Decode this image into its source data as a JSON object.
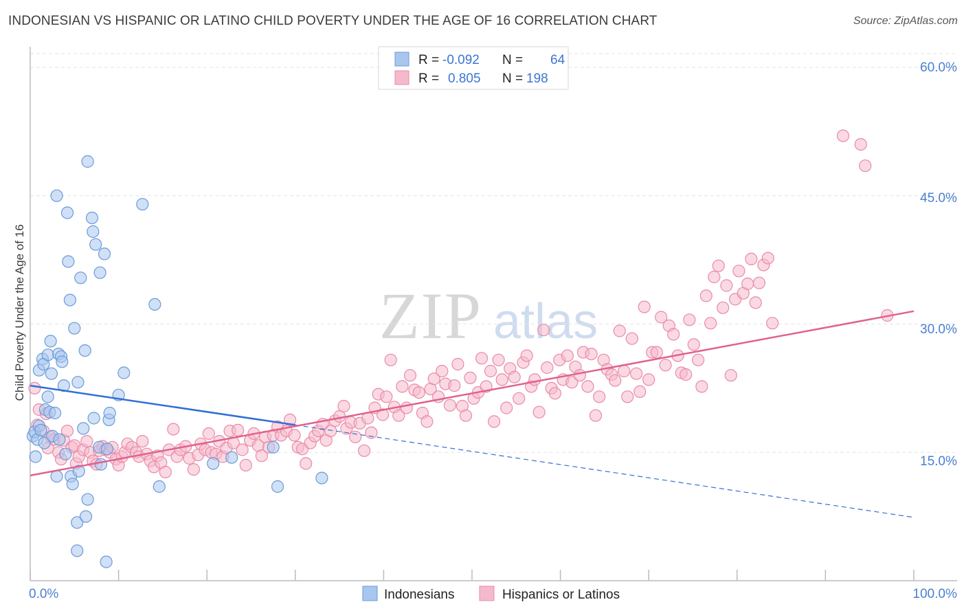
{
  "title": "INDONESIAN VS HISPANIC OR LATINO CHILD POVERTY UNDER THE AGE OF 16 CORRELATION CHART",
  "source": "Source: ZipAtlas.com",
  "watermark": {
    "zip": "ZIP",
    "atlas": "atlas"
  },
  "colors": {
    "blue_fill": "#a9c6ee",
    "blue_stroke": "#6a9ad9",
    "blue_line": "#2f6fd6",
    "pink_fill": "#f5b9cc",
    "pink_stroke": "#e88aa8",
    "pink_line": "#e0628c",
    "tick_text": "#4a7fd0",
    "grid": "#e3e3e3"
  },
  "legend": {
    "r_label": "R =",
    "n_label": "N =",
    "rows": [
      {
        "series": "Indonesians",
        "r": "-0.092",
        "n": "64"
      },
      {
        "series": "Hispanics or Latinos",
        "r": "0.805",
        "n": "198"
      }
    ]
  },
  "chart_data": {
    "type": "scatter",
    "title": "INDONESIAN VS HISPANIC OR LATINO CHILD POVERTY UNDER THE AGE OF 16 CORRELATION CHART",
    "xlabel": "",
    "ylabel": "Child Poverty Under the Age of 16",
    "xlim": [
      0,
      100
    ],
    "ylim": [
      0,
      60
    ],
    "x_tick_labels": [
      "0.0%",
      "100.0%"
    ],
    "y_ticks": [
      15,
      30,
      45,
      60
    ],
    "y_tick_labels": [
      "15.0%",
      "30.0%",
      "45.0%",
      "60.0%"
    ],
    "grid": true,
    "series": [
      {
        "name": "Indonesians",
        "trend": {
          "x0": 0,
          "y0": 22.8,
          "x1": 30,
          "y1": 18.2,
          "dashed_to_x": 100,
          "dashed_to_y": 7.4
        },
        "points": [
          [
            0.3,
            16.9
          ],
          [
            0.5,
            17.4
          ],
          [
            0.6,
            14.5
          ],
          [
            0.8,
            16.5
          ],
          [
            1,
            18.1
          ],
          [
            1,
            24.6
          ],
          [
            1.2,
            17.6
          ],
          [
            1.4,
            25.9
          ],
          [
            1.5,
            25.3
          ],
          [
            1.6,
            16.1
          ],
          [
            1.7,
            20
          ],
          [
            2,
            21.5
          ],
          [
            2,
            26.4
          ],
          [
            2.2,
            19.7
          ],
          [
            2.3,
            28
          ],
          [
            2.4,
            24.2
          ],
          [
            2.5,
            16.9
          ],
          [
            2.8,
            19.6
          ],
          [
            3,
            12.2
          ],
          [
            3,
            45
          ],
          [
            3.2,
            26.5
          ],
          [
            3.3,
            16.5
          ],
          [
            3.5,
            26.2
          ],
          [
            3.6,
            25.6
          ],
          [
            3.8,
            22.8
          ],
          [
            4,
            14.8
          ],
          [
            4.2,
            43
          ],
          [
            4.3,
            37.3
          ],
          [
            4.5,
            32.8
          ],
          [
            4.6,
            12.2
          ],
          [
            4.8,
            11.3
          ],
          [
            5,
            29.5
          ],
          [
            5.3,
            6.8
          ],
          [
            5.3,
            3.5
          ],
          [
            5.4,
            23.2
          ],
          [
            5.5,
            12.8
          ],
          [
            5.7,
            35.4
          ],
          [
            6,
            17.8
          ],
          [
            6.2,
            26.9
          ],
          [
            6.3,
            7.5
          ],
          [
            6.5,
            9.5
          ],
          [
            6.5,
            49
          ],
          [
            7,
            42.4
          ],
          [
            7.1,
            40.8
          ],
          [
            7.2,
            19
          ],
          [
            7.4,
            39.3
          ],
          [
            7.8,
            15.6
          ],
          [
            7.9,
            36
          ],
          [
            8,
            13.6
          ],
          [
            8.4,
            38.2
          ],
          [
            8.6,
            2.2
          ],
          [
            8.7,
            15.4
          ],
          [
            8.9,
            18.8
          ],
          [
            9,
            19.6
          ],
          [
            10,
            21.7
          ],
          [
            10.6,
            24.3
          ],
          [
            12.7,
            44
          ],
          [
            14.1,
            32.3
          ],
          [
            14.6,
            11
          ],
          [
            20.7,
            13.7
          ],
          [
            22.8,
            14.4
          ],
          [
            27.5,
            15.6
          ],
          [
            28,
            11
          ],
          [
            33,
            12
          ]
        ]
      },
      {
        "name": "Hispanics or Latinos",
        "trend": {
          "x0": 0,
          "y0": 12.3,
          "x1": 100,
          "y1": 31.5
        },
        "points": [
          [
            0.5,
            22.5
          ],
          [
            0.8,
            18.2
          ],
          [
            1,
            20
          ],
          [
            1.5,
            17.5
          ],
          [
            1.8,
            19.5
          ],
          [
            2,
            15.5
          ],
          [
            2.3,
            16.8
          ],
          [
            2.7,
            16.5
          ],
          [
            3.2,
            15
          ],
          [
            3.5,
            14.2
          ],
          [
            3.8,
            16.4
          ],
          [
            4.2,
            17.5
          ],
          [
            4.7,
            15.6
          ],
          [
            5,
            15.8
          ],
          [
            5.2,
            13.7
          ],
          [
            5.5,
            14.5
          ],
          [
            6,
            15.3
          ],
          [
            6.4,
            16.3
          ],
          [
            6.8,
            15
          ],
          [
            7.1,
            14
          ],
          [
            7.5,
            13.6
          ],
          [
            7.8,
            15.2
          ],
          [
            8.2,
            15.7
          ],
          [
            8.5,
            15.3
          ],
          [
            9,
            15
          ],
          [
            9.3,
            15.6
          ],
          [
            9.7,
            14.2
          ],
          [
            10,
            13.5
          ],
          [
            10.4,
            14.5
          ],
          [
            10.7,
            15
          ],
          [
            11,
            16
          ],
          [
            11.5,
            15.6
          ],
          [
            12,
            15
          ],
          [
            12.3,
            14.5
          ],
          [
            12.7,
            16.3
          ],
          [
            13.2,
            14.8
          ],
          [
            13.6,
            14
          ],
          [
            14,
            13.3
          ],
          [
            14.4,
            14.6
          ],
          [
            14.8,
            13.8
          ],
          [
            15.3,
            12.7
          ],
          [
            15.7,
            15.3
          ],
          [
            16.2,
            17.7
          ],
          [
            16.6,
            14.5
          ],
          [
            17,
            15.3
          ],
          [
            17.6,
            15.7
          ],
          [
            18,
            14.3
          ],
          [
            18.5,
            13
          ],
          [
            19,
            14.7
          ],
          [
            19.3,
            16
          ],
          [
            19.8,
            15.3
          ],
          [
            20.2,
            17.2
          ],
          [
            20.5,
            15
          ],
          [
            21,
            14.8
          ],
          [
            21.4,
            16.3
          ],
          [
            21.8,
            14.5
          ],
          [
            22.2,
            15.5
          ],
          [
            22.6,
            17.5
          ],
          [
            23,
            16.1
          ],
          [
            23.5,
            17.6
          ],
          [
            24,
            15.3
          ],
          [
            24.4,
            13.5
          ],
          [
            24.9,
            16.4
          ],
          [
            25.3,
            17.2
          ],
          [
            25.8,
            15.8
          ],
          [
            26.2,
            14.6
          ],
          [
            26.6,
            16.8
          ],
          [
            27,
            15.6
          ],
          [
            27.5,
            17
          ],
          [
            28,
            18
          ],
          [
            28.4,
            17
          ],
          [
            29,
            17.5
          ],
          [
            29.4,
            18.8
          ],
          [
            29.9,
            17
          ],
          [
            30.3,
            15.6
          ],
          [
            30.8,
            15.4
          ],
          [
            31.2,
            13.7
          ],
          [
            31.7,
            16.1
          ],
          [
            32.2,
            16.9
          ],
          [
            32.6,
            17.5
          ],
          [
            33.1,
            18.3
          ],
          [
            33.5,
            16.4
          ],
          [
            34,
            17.5
          ],
          [
            34.5,
            18.7
          ],
          [
            35,
            19.2
          ],
          [
            35.5,
            20.4
          ],
          [
            35.8,
            17.8
          ],
          [
            36.3,
            18.5
          ],
          [
            36.8,
            16.8
          ],
          [
            37.3,
            18.4
          ],
          [
            37.8,
            15.2
          ],
          [
            38.2,
            19
          ],
          [
            38.6,
            17.3
          ],
          [
            39,
            20.2
          ],
          [
            39.4,
            21.8
          ],
          [
            39.9,
            19.4
          ],
          [
            40.3,
            21.5
          ],
          [
            40.8,
            25.8
          ],
          [
            41.2,
            20.3
          ],
          [
            41.7,
            19.3
          ],
          [
            42.1,
            22.7
          ],
          [
            42.6,
            20.2
          ],
          [
            43,
            24
          ],
          [
            43.5,
            22.3
          ],
          [
            44,
            22
          ],
          [
            44.4,
            19.6
          ],
          [
            44.9,
            18.6
          ],
          [
            45.3,
            22.4
          ],
          [
            45.7,
            23.6
          ],
          [
            46.2,
            21.5
          ],
          [
            46.6,
            24.5
          ],
          [
            47,
            23
          ],
          [
            47.5,
            20.5
          ],
          [
            48,
            22.8
          ],
          [
            48.4,
            25.3
          ],
          [
            48.9,
            20.4
          ],
          [
            49.3,
            19.3
          ],
          [
            49.8,
            23.7
          ],
          [
            50.2,
            21.3
          ],
          [
            50.7,
            22
          ],
          [
            51.1,
            26
          ],
          [
            51.6,
            22.7
          ],
          [
            52.1,
            24.5
          ],
          [
            52.5,
            18.6
          ],
          [
            53,
            25.8
          ],
          [
            53.4,
            23.5
          ],
          [
            53.9,
            20.2
          ],
          [
            54.3,
            24.8
          ],
          [
            54.8,
            23.8
          ],
          [
            55.3,
            21.3
          ],
          [
            55.8,
            25.5
          ],
          [
            56.2,
            26.3
          ],
          [
            56.7,
            22.7
          ],
          [
            57.1,
            23.5
          ],
          [
            57.6,
            19.7
          ],
          [
            58.1,
            29.3
          ],
          [
            58.5,
            24.9
          ],
          [
            59,
            22.5
          ],
          [
            59.4,
            21.9
          ],
          [
            59.9,
            25.8
          ],
          [
            60.3,
            23.5
          ],
          [
            60.8,
            26.3
          ],
          [
            61.3,
            23.2
          ],
          [
            61.7,
            25
          ],
          [
            62.2,
            24
          ],
          [
            62.6,
            26.7
          ],
          [
            63.1,
            22.7
          ],
          [
            63.5,
            26.5
          ],
          [
            64,
            19.3
          ],
          [
            64.4,
            21.5
          ],
          [
            64.9,
            25.8
          ],
          [
            65.3,
            24.7
          ],
          [
            65.8,
            24.1
          ],
          [
            66.2,
            23.4
          ],
          [
            66.7,
            29.2
          ],
          [
            67.2,
            24.5
          ],
          [
            67.6,
            21.5
          ],
          [
            68.1,
            28.3
          ],
          [
            68.6,
            24.2
          ],
          [
            69,
            22.1
          ],
          [
            69.5,
            32
          ],
          [
            70,
            23.5
          ],
          [
            70.4,
            26.7
          ],
          [
            70.9,
            26.7
          ],
          [
            71.4,
            30.8
          ],
          [
            71.9,
            25.2
          ],
          [
            72.3,
            29.8
          ],
          [
            72.8,
            28.8
          ],
          [
            73.3,
            26.3
          ],
          [
            73.7,
            24.3
          ],
          [
            74.2,
            24.1
          ],
          [
            74.6,
            30.5
          ],
          [
            75.1,
            27.6
          ],
          [
            75.6,
            25.8
          ],
          [
            76,
            22.7
          ],
          [
            76.5,
            33.3
          ],
          [
            77,
            30.1
          ],
          [
            77.4,
            35.5
          ],
          [
            77.9,
            36.8
          ],
          [
            78.4,
            31.9
          ],
          [
            78.8,
            34.5
          ],
          [
            79.3,
            24
          ],
          [
            79.8,
            32.9
          ],
          [
            80.2,
            36.2
          ],
          [
            80.7,
            33.6
          ],
          [
            81.2,
            34.7
          ],
          [
            81.6,
            37.6
          ],
          [
            82.1,
            32.5
          ],
          [
            82.5,
            34.8
          ],
          [
            83,
            36.9
          ],
          [
            83.5,
            37.7
          ],
          [
            84,
            30.1
          ],
          [
            92,
            52
          ],
          [
            94,
            51
          ],
          [
            94.5,
            48.5
          ],
          [
            97,
            31
          ]
        ]
      }
    ]
  }
}
